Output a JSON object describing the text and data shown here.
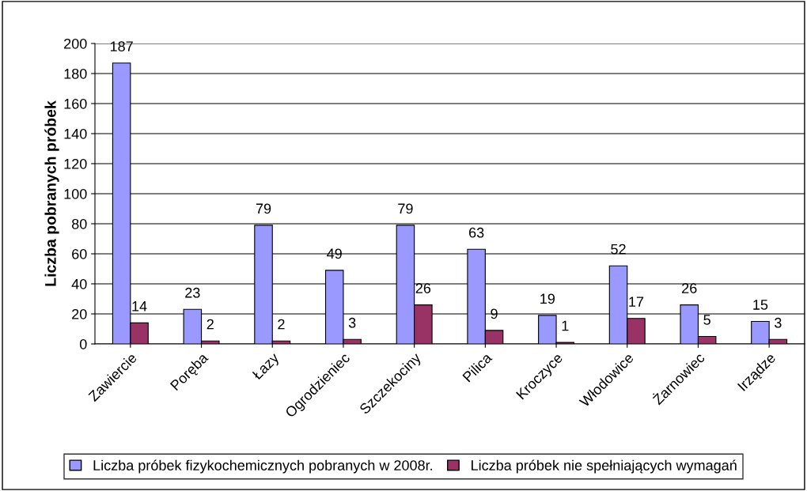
{
  "chart_data": {
    "type": "bar",
    "ylabel": "Liczba pobranych próbek",
    "categories": [
      "Zawiercie",
      "Poręba",
      "Łazy",
      "Ogrodzieniec",
      "Szczekociny",
      "Pilica",
      "Kroczyce",
      "Włodowice",
      "Żarnowiec",
      "Irządze"
    ],
    "series": [
      {
        "name": "Liczba próbek fizykochemicznych pobranych w 2008r.",
        "color": "#9999ff",
        "values": [
          187,
          23,
          79,
          49,
          79,
          63,
          19,
          52,
          26,
          15
        ]
      },
      {
        "name": "Liczba próbek nie spełniających wymagań",
        "color": "#993366",
        "values": [
          14,
          2,
          2,
          3,
          26,
          9,
          1,
          17,
          5,
          3
        ]
      }
    ],
    "ylim": [
      0,
      200
    ],
    "yticks": [
      0,
      20,
      40,
      60,
      80,
      100,
      120,
      140,
      160,
      180,
      200
    ],
    "grid": "y",
    "legend": "bottom",
    "data_labels": true
  }
}
